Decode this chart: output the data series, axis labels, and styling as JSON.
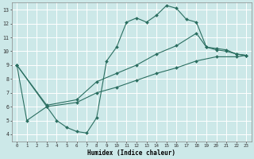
{
  "xlabel": "Humidex (Indice chaleur)",
  "background_color": "#cce8e8",
  "line_color": "#2a6e60",
  "grid_color": "#ffffff",
  "xlim": [
    -0.5,
    23.5
  ],
  "ylim": [
    3.5,
    13.5
  ],
  "xticks": [
    0,
    1,
    2,
    3,
    4,
    5,
    6,
    7,
    8,
    9,
    10,
    11,
    12,
    13,
    14,
    15,
    16,
    17,
    18,
    19,
    20,
    21,
    22,
    23
  ],
  "yticks": [
    4,
    5,
    6,
    7,
    8,
    9,
    10,
    11,
    12,
    13
  ],
  "line1_x": [
    0,
    1,
    3,
    4,
    5,
    6,
    7,
    8,
    9,
    10,
    11,
    12,
    13,
    14,
    15,
    16,
    17,
    18,
    19,
    20,
    21,
    22,
    23
  ],
  "line1_y": [
    9,
    5,
    6,
    5,
    4.5,
    4.2,
    4.1,
    5.2,
    9.3,
    10.3,
    12.1,
    12.4,
    12.1,
    12.6,
    13.3,
    13.1,
    12.3,
    12.1,
    10.3,
    10.1,
    10.0,
    9.8,
    9.7
  ],
  "line2_x": [
    0,
    3,
    6,
    8,
    10,
    12,
    14,
    16,
    18,
    19,
    20,
    21,
    22,
    23
  ],
  "line2_y": [
    9,
    6.1,
    6.5,
    7.8,
    8.4,
    9.0,
    9.8,
    10.4,
    11.3,
    10.3,
    10.2,
    10.1,
    9.8,
    9.7
  ],
  "line3_x": [
    0,
    3,
    6,
    8,
    10,
    12,
    14,
    16,
    18,
    20,
    22,
    23
  ],
  "line3_y": [
    9,
    6.0,
    6.3,
    7.0,
    7.4,
    7.9,
    8.4,
    8.8,
    9.3,
    9.6,
    9.6,
    9.7
  ]
}
